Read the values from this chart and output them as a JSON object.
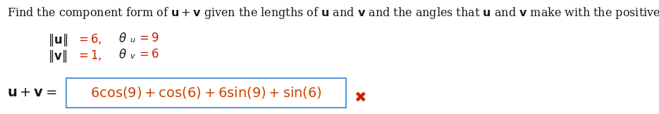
{
  "bg_color": "#ffffff",
  "text_color_black": "#1a1a1a",
  "text_color_red": "#cc2200",
  "text_color_orange": "#cc4400",
  "text_color_blue": "#5b9bd5",
  "font_size_top": 11.5,
  "font_size_given": 12,
  "font_size_box": 14,
  "font_size_x": 15,
  "fig_width": 9.35,
  "fig_height": 1.62,
  "dpi": 100
}
